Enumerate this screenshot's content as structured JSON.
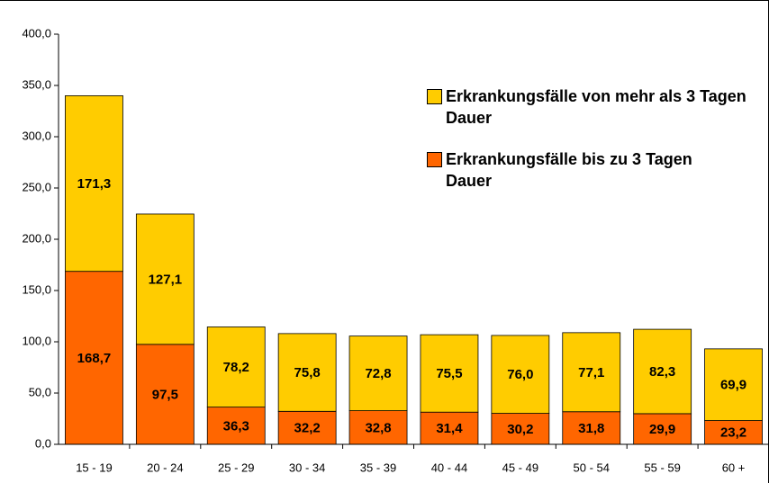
{
  "chart_data": {
    "type": "stacked_bar",
    "categories": [
      "15 - 19",
      "20 - 24",
      "25 - 29",
      "30 - 34",
      "35 - 39",
      "40 - 44",
      "45 - 49",
      "50 - 54",
      "55 - 59",
      "60 +"
    ],
    "series": [
      {
        "name": "Erkrankungsfälle bis zu 3 Tagen Dauer",
        "color": "#ff6600",
        "values": [
          168.7,
          97.5,
          36.3,
          32.2,
          32.8,
          31.4,
          30.2,
          31.8,
          29.9,
          23.2
        ],
        "value_labels": [
          "168,7",
          "97,5",
          "36,3",
          "32,2",
          "32,8",
          "31,4",
          "30,2",
          "31,8",
          "29,9",
          "23,2"
        ]
      },
      {
        "name": "Erkrankungsfälle von mehr als 3 Tagen Dauer",
        "color": "#ffcc00",
        "values": [
          171.3,
          127.1,
          78.2,
          75.8,
          72.8,
          75.5,
          76.0,
          77.1,
          82.3,
          69.9
        ],
        "value_labels": [
          "171,3",
          "127,1",
          "78,2",
          "75,8",
          "72,8",
          "75,5",
          "76,0",
          "77,1",
          "82,3",
          "69,9"
        ]
      }
    ],
    "ylim": [
      0,
      400
    ],
    "yticks": [
      {
        "value": 0,
        "label": "0,0"
      },
      {
        "value": 50,
        "label": "50,0"
      },
      {
        "value": 100,
        "label": "100,0"
      },
      {
        "value": 150,
        "label": "150,0"
      },
      {
        "value": 200,
        "label": "200,0"
      },
      {
        "value": 250,
        "label": "250,0"
      },
      {
        "value": 300,
        "label": "300,0"
      },
      {
        "value": 350,
        "label": "350,0"
      },
      {
        "value": 400,
        "label": "400,0"
      }
    ],
    "legend": "upper right"
  }
}
